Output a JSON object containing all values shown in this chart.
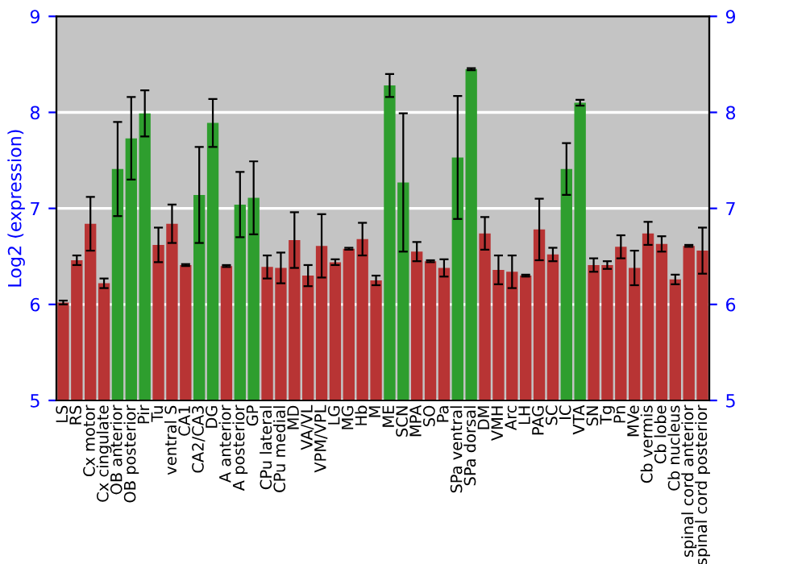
{
  "chart_data": {
    "type": "bar",
    "ylabel": "Log2 (expression)",
    "categories": [
      "LS",
      "RS",
      "Cx motor",
      "Cx cingulate",
      "OB anterior",
      "OB posterior",
      "Pir",
      "Tu",
      "ventral S",
      "CA1",
      "CA2/CA3",
      "DG",
      "A anterior",
      "A posterior",
      "GP",
      "CPu lateral",
      "CPu medial",
      "MD",
      "VA/VL",
      "VPM/VPL",
      "LG",
      "MG",
      "Hb",
      "M",
      "ME",
      "SCN",
      "MPA",
      "SO",
      "Pa",
      "SPa ventral",
      "SPa dorsal",
      "DM",
      "VMH",
      "Arc",
      "LH",
      "PAG",
      "SC",
      "IC",
      "VTA",
      "SN",
      "Tg",
      "Pn",
      "MVe",
      "Cb vermis",
      "Cb lobe",
      "Cb nucleus",
      "spinal cord anterior",
      "spinal cord posterior"
    ],
    "values": [
      6.02,
      6.46,
      6.84,
      6.22,
      7.41,
      7.73,
      7.99,
      6.62,
      6.84,
      6.41,
      7.14,
      7.89,
      6.4,
      7.04,
      7.11,
      6.39,
      6.38,
      6.67,
      6.3,
      6.61,
      6.44,
      6.58,
      6.68,
      6.25,
      8.28,
      7.27,
      6.55,
      6.45,
      6.38,
      7.53,
      8.45,
      6.74,
      6.36,
      6.34,
      6.3,
      6.78,
      6.52,
      7.41,
      8.1,
      6.41,
      6.41,
      6.6,
      6.38,
      6.74,
      6.63,
      6.26,
      6.61,
      6.56
    ],
    "errors": [
      0.02,
      0.05,
      0.28,
      0.05,
      0.49,
      0.43,
      0.24,
      0.18,
      0.2,
      0.01,
      0.5,
      0.25,
      0.01,
      0.34,
      0.38,
      0.12,
      0.16,
      0.29,
      0.11,
      0.33,
      0.03,
      0.01,
      0.17,
      0.05,
      0.12,
      0.72,
      0.1,
      0.01,
      0.09,
      0.64,
      0.01,
      0.17,
      0.15,
      0.17,
      0.01,
      0.32,
      0.07,
      0.27,
      0.03,
      0.07,
      0.04,
      0.12,
      0.18,
      0.12,
      0.08,
      0.05,
      0.01,
      0.24
    ],
    "colors": [
      "#b83434",
      "#b83434",
      "#b83434",
      "#b83434",
      "#2e9e2e",
      "#2e9e2e",
      "#2e9e2e",
      "#b83434",
      "#b83434",
      "#b83434",
      "#2e9e2e",
      "#2e9e2e",
      "#b83434",
      "#2e9e2e",
      "#2e9e2e",
      "#b83434",
      "#b83434",
      "#b83434",
      "#b83434",
      "#b83434",
      "#b83434",
      "#b83434",
      "#b83434",
      "#b83434",
      "#2e9e2e",
      "#2e9e2e",
      "#b83434",
      "#b83434",
      "#b83434",
      "#2e9e2e",
      "#2e9e2e",
      "#b83434",
      "#b83434",
      "#b83434",
      "#b83434",
      "#b83434",
      "#b83434",
      "#2e9e2e",
      "#2e9e2e",
      "#b83434",
      "#b83434",
      "#b83434",
      "#b83434",
      "#b83434",
      "#b83434",
      "#b83434",
      "#b83434",
      "#b83434"
    ],
    "ylim": [
      5,
      9
    ],
    "yticks": [
      5,
      6,
      7,
      8,
      9
    ],
    "y2lim": [
      5,
      9
    ],
    "y2ticks": [
      5,
      6,
      7,
      8,
      9
    ],
    "grid": "y"
  }
}
